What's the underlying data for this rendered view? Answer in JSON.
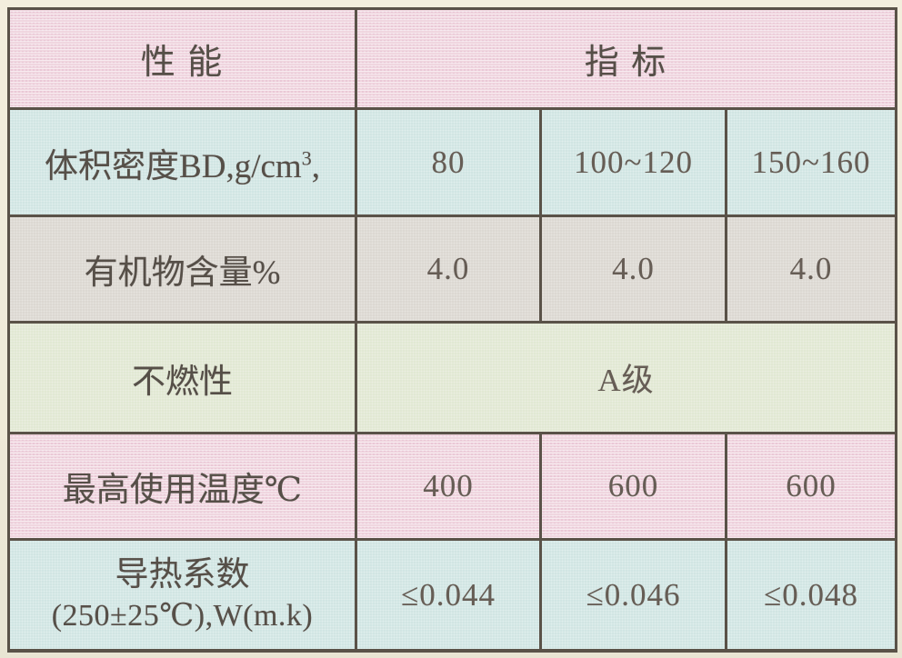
{
  "palette": {
    "page_background": "#f0ebd9",
    "table_border": "#5a5248",
    "header_pink": "#f0d7e0",
    "row_blue": "#cfe4e2",
    "row_gray": "#dad6d0",
    "row_green": "#e0e7d1",
    "label_text": "#564f48",
    "value_text": "#665d55"
  },
  "table": {
    "header": {
      "property": "性 能",
      "indicator": "指 标"
    },
    "rows": [
      {
        "name": "bulk-density",
        "label_base": "体积密度BD,g/cm",
        "label_sup": "3",
        "label_tail": ",",
        "values": [
          "80",
          "100~120",
          "150~160"
        ]
      },
      {
        "name": "organic-content",
        "label": "有机物含量%",
        "values": [
          "4.0",
          "4.0",
          "4.0"
        ]
      },
      {
        "name": "incombustibility",
        "label": "不燃性",
        "merged_value": "A级"
      },
      {
        "name": "max-service-temperature",
        "label": "最高使用温度℃",
        "values": [
          "400",
          "600",
          "600"
        ]
      },
      {
        "name": "thermal-conductivity",
        "label_line1": "导热系数",
        "label_line2": "(250±25℃),W(m.k)",
        "values": [
          "≤0.044",
          "≤0.046",
          "≤0.048"
        ]
      }
    ]
  }
}
